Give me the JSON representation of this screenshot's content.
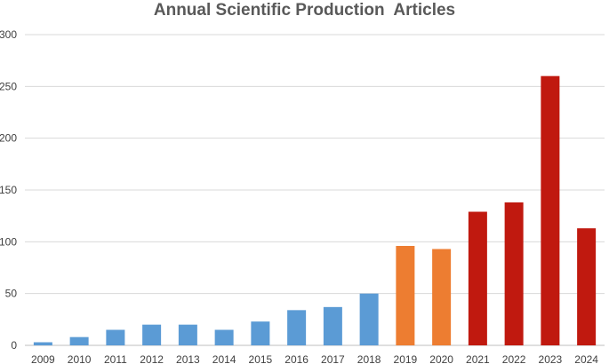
{
  "chart_data": {
    "type": "bar",
    "title": "Annual Scientific Production  Articles",
    "xlabel": "",
    "ylabel": "",
    "categories": [
      "2009",
      "2010",
      "2011",
      "2012",
      "2013",
      "2014",
      "2015",
      "2016",
      "2017",
      "2018",
      "2019",
      "2020",
      "2021",
      "2022",
      "2023",
      "2024"
    ],
    "values": [
      3,
      8,
      15,
      20,
      20,
      15,
      23,
      34,
      37,
      50,
      96,
      93,
      129,
      138,
      260,
      113
    ],
    "bar_colors": [
      "#5b9bd5",
      "#5b9bd5",
      "#5b9bd5",
      "#5b9bd5",
      "#5b9bd5",
      "#5b9bd5",
      "#5b9bd5",
      "#5b9bd5",
      "#5b9bd5",
      "#5b9bd5",
      "#ed7d31",
      "#ed7d31",
      "#c0190f",
      "#c0190f",
      "#c0190f",
      "#c0190f"
    ],
    "ylim": [
      0,
      300
    ],
    "yticks": [
      "0",
      "50",
      "100",
      "150",
      "200",
      "250",
      "300"
    ],
    "ytick_values": [
      0,
      50,
      100,
      150,
      200,
      250,
      300
    ],
    "grid": true,
    "legend": "none"
  }
}
